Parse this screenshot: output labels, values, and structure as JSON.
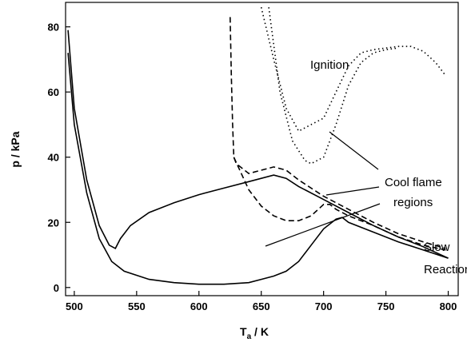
{
  "chart_data": {
    "type": "line",
    "x_label_parts": [
      "T",
      "a",
      " / K"
    ],
    "y_label": "p / kPa",
    "xlim": [
      493,
      808
    ],
    "ylim": [
      -2.5,
      87.5
    ],
    "xticks": [
      500,
      550,
      600,
      650,
      700,
      750,
      800
    ],
    "yticks": [
      0,
      20,
      40,
      60,
      80
    ],
    "annotations": [
      "Ignition",
      "Cool flame",
      "regions",
      "Slow",
      "Reaction"
    ],
    "series": [
      {
        "color": "#000000",
        "line_style": "solid",
        "x": [
          495,
          500,
          510,
          520,
          528,
          533,
          537,
          545,
          560,
          580,
          600,
          620,
          640,
          660,
          670,
          680,
          700,
          720,
          740,
          760,
          780,
          800
        ],
        "values": [
          79,
          55,
          33,
          19,
          13,
          12,
          15,
          19,
          23,
          26,
          28.5,
          30.5,
          32.5,
          34.5,
          33.5,
          31,
          27,
          23,
          19,
          15.5,
          12.5,
          9
        ]
      },
      {
        "color": "#000000",
        "line_style": "solid",
        "x": [
          495,
          500,
          510,
          520,
          530,
          540,
          560,
          580,
          600,
          620,
          640,
          650,
          660,
          670,
          680,
          690,
          700,
          710,
          715,
          720,
          740,
          760,
          780,
          800
        ],
        "values": [
          72,
          50,
          29,
          15,
          8,
          5,
          2.5,
          1.5,
          1,
          1,
          1.5,
          2.5,
          3.5,
          5,
          8,
          13,
          18,
          21,
          21.5,
          20,
          17,
          14,
          11.5,
          9
        ]
      },
      {
        "color": "#000000",
        "line_style": "dashed",
        "x": [
          625,
          626,
          627,
          628,
          630,
          640,
          650,
          660,
          670,
          680,
          700,
          720,
          740,
          760,
          780,
          798
        ],
        "values": [
          83,
          65,
          50,
          40,
          38,
          35,
          36,
          37,
          36,
          33,
          28,
          24,
          20,
          16.5,
          14,
          12
        ]
      },
      {
        "color": "#000000",
        "line_style": "dashed",
        "x": [
          628,
          640,
          650,
          660,
          670,
          680,
          690,
          700,
          705,
          710,
          720,
          740,
          760,
          780,
          798
        ],
        "values": [
          40,
          30,
          25,
          22,
          20.5,
          20.5,
          22,
          25.5,
          25.5,
          24,
          22,
          19,
          15.5,
          13,
          11.5
        ]
      },
      {
        "color": "#000000",
        "line_style": "dotted",
        "x": [
          650,
          660,
          670,
          680,
          690,
          700,
          710,
          720,
          730,
          740,
          750,
          760,
          770,
          780,
          790,
          798
        ],
        "values": [
          86,
          70,
          55,
          48,
          50,
          52,
          60,
          68,
          72,
          73,
          73.5,
          74,
          74,
          72.5,
          69,
          65
        ]
      },
      {
        "color": "#000000",
        "line_style": "dotted",
        "x": [
          656,
          665,
          675,
          685,
          690,
          700,
          710,
          720,
          730,
          740,
          750,
          760
        ],
        "values": [
          86,
          60,
          45,
          39,
          38,
          40,
          50,
          62,
          69,
          72,
          73,
          73.5
        ]
      }
    ]
  }
}
